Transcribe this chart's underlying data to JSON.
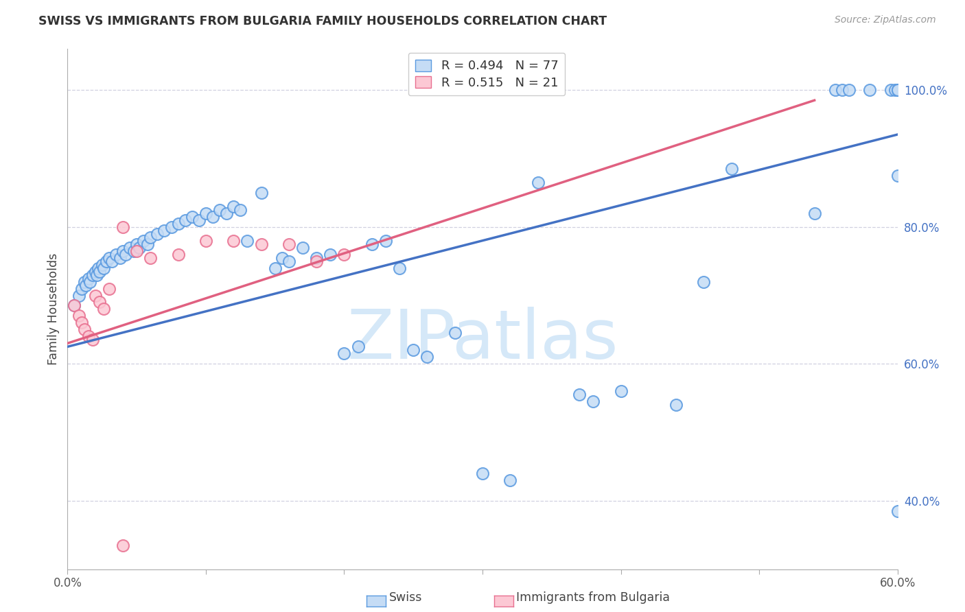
{
  "title": "SWISS VS IMMIGRANTS FROM BULGARIA FAMILY HOUSEHOLDS CORRELATION CHART",
  "source": "Source: ZipAtlas.com",
  "ylabel": "Family Households",
  "xlim": [
    0.0,
    0.6
  ],
  "ylim": [
    0.3,
    1.06
  ],
  "xtick_positions": [
    0.0,
    0.1,
    0.2,
    0.3,
    0.4,
    0.5,
    0.6
  ],
  "xtick_labels": [
    "0.0%",
    "",
    "",
    "",
    "",
    "",
    "60.0%"
  ],
  "yticks_right": [
    0.4,
    0.6,
    0.8,
    1.0
  ],
  "ytick_labels_right": [
    "40.0%",
    "60.0%",
    "80.0%",
    "100.0%"
  ],
  "swiss_face_color": "#c5dcf5",
  "swiss_edge_color": "#5a9ae0",
  "bulgaria_face_color": "#fcc8d4",
  "bulgaria_edge_color": "#e87090",
  "swiss_line_color": "#4472c4",
  "bulgaria_line_color": "#e06080",
  "r_color": "#4472c4",
  "R_swiss": "0.494",
  "N_swiss": "77",
  "R_bulgaria": "0.515",
  "N_bulgaria": "21",
  "legend_label_swiss": "Swiss",
  "legend_label_bulgaria": "Immigrants from Bulgaria",
  "watermark_text": "ZIPatlas",
  "watermark_color": "#d5e8f8",
  "grid_color": "#d0d0e0",
  "bg_color": "#ffffff",
  "swiss_trend_x0": 0.0,
  "swiss_trend_x1": 0.6,
  "swiss_trend_y0": 0.625,
  "swiss_trend_y1": 0.935,
  "bulgaria_trend_x0": 0.0,
  "bulgaria_trend_x1": 0.54,
  "bulgaria_trend_y0": 0.63,
  "bulgaria_trend_y1": 0.985,
  "swiss_x": [
    0.005,
    0.008,
    0.01,
    0.012,
    0.013,
    0.015,
    0.016,
    0.018,
    0.02,
    0.021,
    0.022,
    0.023,
    0.025,
    0.026,
    0.028,
    0.03,
    0.032,
    0.035,
    0.038,
    0.04,
    0.042,
    0.045,
    0.048,
    0.05,
    0.052,
    0.055,
    0.058,
    0.06,
    0.065,
    0.07,
    0.075,
    0.08,
    0.085,
    0.09,
    0.095,
    0.1,
    0.105,
    0.11,
    0.115,
    0.12,
    0.125,
    0.13,
    0.14,
    0.15,
    0.155,
    0.16,
    0.17,
    0.18,
    0.19,
    0.2,
    0.21,
    0.22,
    0.23,
    0.24,
    0.25,
    0.26,
    0.28,
    0.3,
    0.32,
    0.34,
    0.37,
    0.38,
    0.4,
    0.44,
    0.46,
    0.48,
    0.54,
    0.555,
    0.56,
    0.565,
    0.58,
    0.595,
    0.598,
    0.6,
    0.6,
    0.6,
    0.6
  ],
  "swiss_y": [
    0.685,
    0.7,
    0.71,
    0.72,
    0.715,
    0.725,
    0.72,
    0.73,
    0.735,
    0.73,
    0.74,
    0.735,
    0.745,
    0.74,
    0.75,
    0.755,
    0.75,
    0.76,
    0.755,
    0.765,
    0.76,
    0.77,
    0.765,
    0.775,
    0.77,
    0.78,
    0.775,
    0.785,
    0.79,
    0.795,
    0.8,
    0.805,
    0.81,
    0.815,
    0.81,
    0.82,
    0.815,
    0.825,
    0.82,
    0.83,
    0.825,
    0.78,
    0.85,
    0.74,
    0.755,
    0.75,
    0.77,
    0.755,
    0.76,
    0.615,
    0.625,
    0.775,
    0.78,
    0.74,
    0.62,
    0.61,
    0.645,
    0.44,
    0.43,
    0.865,
    0.555,
    0.545,
    0.56,
    0.54,
    0.72,
    0.885,
    0.82,
    1.0,
    1.0,
    1.0,
    1.0,
    1.0,
    1.0,
    1.0,
    1.0,
    0.875,
    0.385
  ],
  "bulgaria_x": [
    0.005,
    0.008,
    0.01,
    0.012,
    0.015,
    0.018,
    0.02,
    0.023,
    0.026,
    0.03,
    0.04,
    0.05,
    0.06,
    0.08,
    0.1,
    0.12,
    0.14,
    0.16,
    0.18,
    0.2,
    0.04
  ],
  "bulgaria_y": [
    0.685,
    0.67,
    0.66,
    0.65,
    0.64,
    0.635,
    0.7,
    0.69,
    0.68,
    0.71,
    0.8,
    0.765,
    0.755,
    0.76,
    0.78,
    0.78,
    0.775,
    0.775,
    0.75,
    0.76,
    0.335
  ]
}
